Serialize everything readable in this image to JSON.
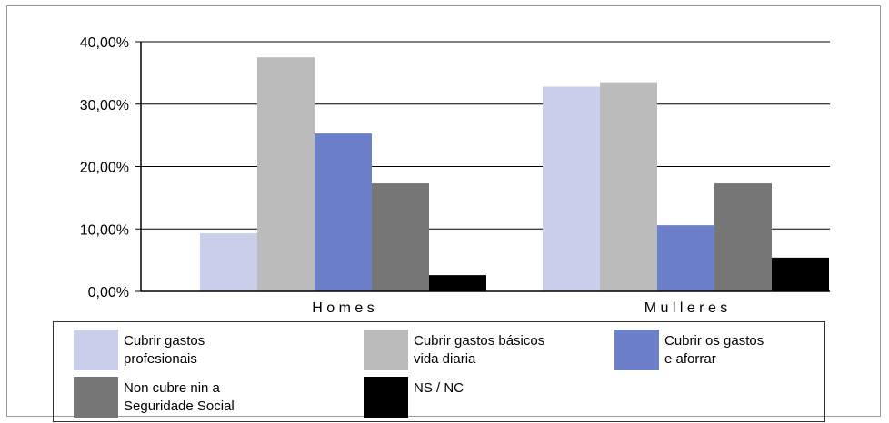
{
  "chart_data": {
    "type": "bar",
    "categories": [
      "H o m e s",
      "M u l l e r e s"
    ],
    "series": [
      {
        "name": "Cubrir gastos\nprofesionais",
        "color": "#c9cfea",
        "values": [
          9.3,
          32.8
        ]
      },
      {
        "name": "Cubrir gastos básicos\nvida diaria",
        "color": "#bbbbbb",
        "values": [
          37.5,
          33.5
        ]
      },
      {
        "name": "Cubrir os gastos\ne aforrar",
        "color": "#6c80c9",
        "values": [
          25.3,
          10.6
        ]
      },
      {
        "name": "Non cubre nin a\nSeguridade Social",
        "color": "#777777",
        "values": [
          17.3,
          17.3
        ]
      },
      {
        "name": "NS / NC",
        "color": "#000000",
        "values": [
          2.6,
          5.4
        ]
      }
    ],
    "yticks": [
      "0,00%",
      "10,00%",
      "20,00%",
      "30,00%",
      "40,00%"
    ],
    "ylim": [
      0,
      40
    ],
    "grid": true,
    "legend": "bottom"
  }
}
